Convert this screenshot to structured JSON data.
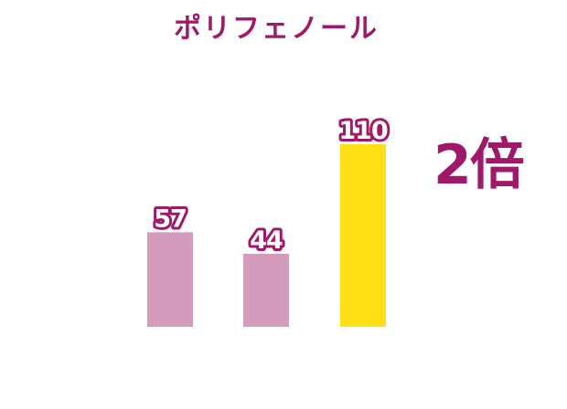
{
  "colors": {
    "title": "#a0186a",
    "bar_normal": "#d49bbd",
    "bar_highlight": "#ffe017",
    "label_fill": "#ffffff",
    "label_stroke": "#a0186a"
  },
  "annotation": "2倍",
  "chart_data": {
    "type": "bar",
    "title": "ポリフェノール",
    "categories": [
      "",
      "",
      ""
    ],
    "values": [
      57,
      44,
      110
    ],
    "data_labels": [
      "57",
      "44",
      "110"
    ],
    "highlight_index": 2,
    "ylim": [
      0,
      110
    ],
    "grid": false,
    "legend": "none"
  }
}
